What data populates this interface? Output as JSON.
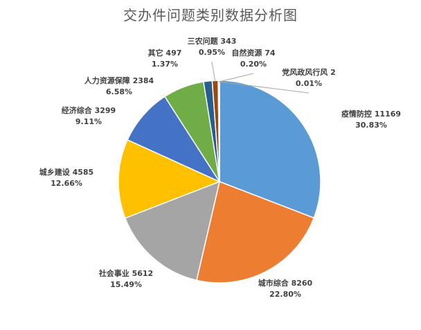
{
  "chart_data": {
    "type": "pie",
    "title": "交办件问题类别数据分析图",
    "slices": [
      {
        "name": "疫情防控",
        "value": 11169,
        "percent": "30.83%",
        "color": "#5B9BD5"
      },
      {
        "name": "城市综合",
        "value": 8260,
        "percent": "22.80%",
        "color": "#ED7D31"
      },
      {
        "name": "社会事业",
        "value": 5612,
        "percent": "15.49%",
        "color": "#A5A5A5"
      },
      {
        "name": "城乡建设",
        "value": 4585,
        "percent": "12.66%",
        "color": "#FFC000"
      },
      {
        "name": "经济综合",
        "value": 3299,
        "percent": "9.11%",
        "color": "#4472C4"
      },
      {
        "name": "人力资源保障",
        "value": 2384,
        "percent": "6.58%",
        "color": "#70AD47"
      },
      {
        "name": "其它",
        "value": 497,
        "percent": "1.37%",
        "color": "#255E91"
      },
      {
        "name": "三农问题",
        "value": 343,
        "percent": "0.95%",
        "color": "#9E480E"
      },
      {
        "name": "自然资源",
        "value": 74,
        "percent": "0.20%",
        "color": "#636363"
      },
      {
        "name": "党风政风行风",
        "value": 2,
        "percent": "0.01%",
        "color": "#997300"
      }
    ]
  }
}
